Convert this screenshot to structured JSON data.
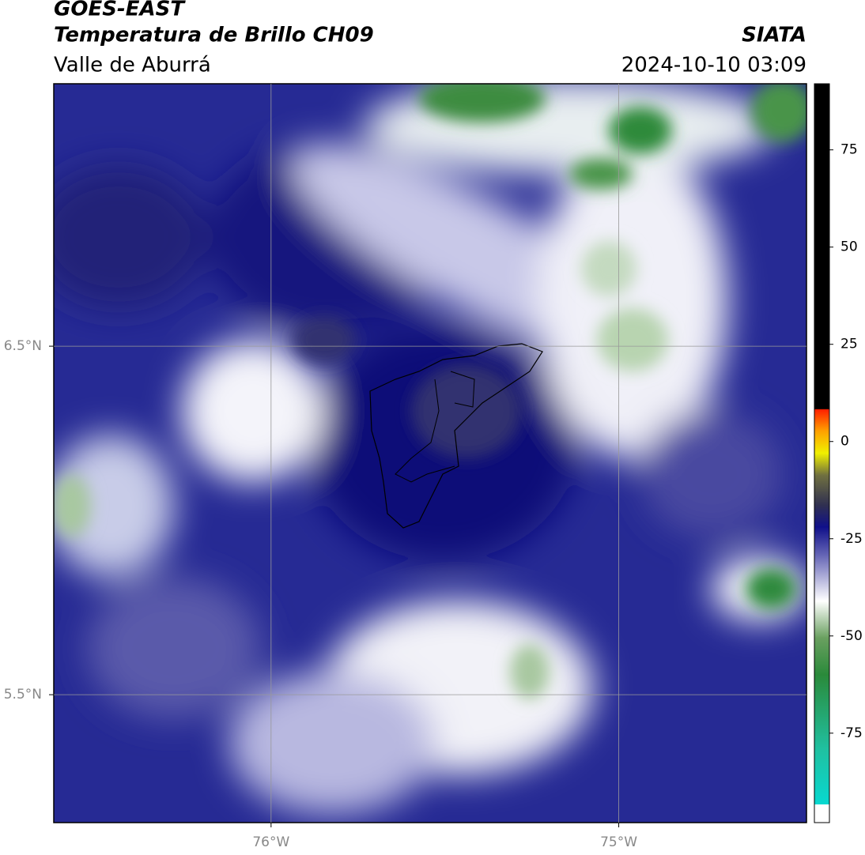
{
  "header": {
    "satellite": "GOES-EAST",
    "product": "Temperatura de Brillo CH09",
    "region": "Valle de Aburrá",
    "agency": "SIATA",
    "datetime": "2024-10-10 03:09"
  },
  "map": {
    "xlim": [
      -76.625,
      -74.46
    ],
    "ylim": [
      5.133,
      7.253
    ],
    "xticks": [
      {
        "value": -76,
        "label": "76°W"
      },
      {
        "value": -75,
        "label": "75°W"
      }
    ],
    "yticks": [
      {
        "value": 6.5,
        "label": "6.5°N"
      },
      {
        "value": 5.5,
        "label": "5.5°N"
      }
    ],
    "grid": true
  },
  "colorbar": {
    "lim": [
      -98,
      92
    ],
    "ticks": [
      75,
      50,
      25,
      0,
      -25,
      -50,
      -75
    ]
  }
}
